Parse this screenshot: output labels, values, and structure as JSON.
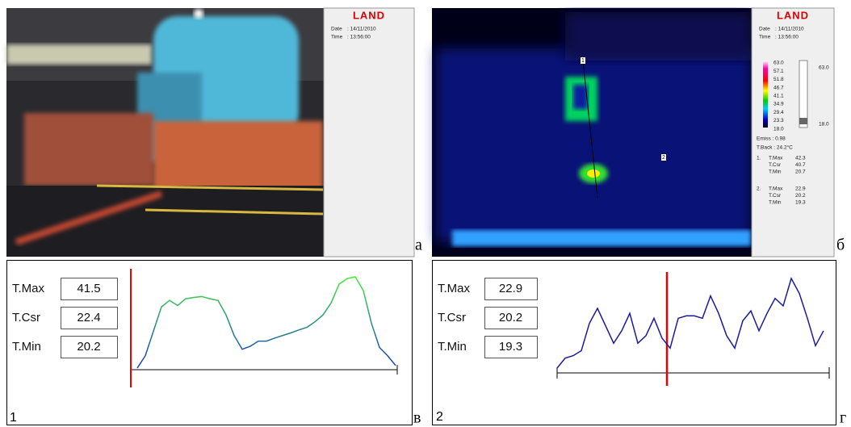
{
  "panels": [
    {
      "letter": "а",
      "logo": "LAND",
      "date_label": "Date",
      "date": ": 14/11/2010",
      "time_label": "Time",
      "time": ": 13:56:00"
    },
    {
      "letter": "б",
      "logo": "LAND",
      "date_label": "Date",
      "date": ": 14/11/2010",
      "time_label": "Time",
      "time": ": 13:56:00",
      "scale_labels": [
        "63.0",
        "57.1",
        "51.8",
        "46.7",
        "41.1",
        "34.9",
        "29.4",
        "23.3",
        "18.0"
      ],
      "range_max": "63.0",
      "range_min": "18.0",
      "emiss": "Emiss    : 0.98",
      "t_back": "T.Back   : 24.2°C",
      "markers": [
        "1",
        "2"
      ],
      "readouts": [
        {
          "index": "1.",
          "rows": [
            {
              "name": "T.Max",
              "value": "42.3"
            },
            {
              "name": "T.Csr",
              "value": "40.7"
            },
            {
              "name": "T.Min",
              "value": "20.7"
            }
          ]
        },
        {
          "index": "2.",
          "rows": [
            {
              "name": "T.Max",
              "value": "22.9"
            },
            {
              "name": "T.Csr",
              "value": "20.2"
            },
            {
              "name": "T.Min",
              "value": "19.3"
            }
          ]
        }
      ]
    }
  ],
  "profiles": [
    {
      "label": "1",
      "letter": "в",
      "colors": [
        "#44ee33",
        "#1133cc"
      ],
      "readout": [
        {
          "name": "T.Max",
          "value": "41.5"
        },
        {
          "name": "T.Csr",
          "value": "22.4"
        },
        {
          "name": "T.Min",
          "value": "20.2"
        }
      ],
      "values": [
        20.2,
        23.1,
        28.8,
        34.5,
        36.0,
        34.8,
        36.4,
        36.7,
        36.9,
        36.4,
        36.0,
        32.6,
        27.8,
        24.6,
        25.3,
        26.5,
        26.5,
        27.2,
        27.8,
        28.4,
        29.1,
        29.7,
        31.0,
        32.6,
        35.4,
        39.8,
        41.1,
        41.5,
        38.3,
        30.7,
        25.0,
        23.1,
        20.8
      ]
    },
    {
      "label": "2",
      "letter": "г",
      "colors": [
        "#1a1aa0",
        "#1a1aa0"
      ],
      "readout": [
        {
          "name": "T.Max",
          "value": "22.9"
        },
        {
          "name": "T.Csr",
          "value": "20.2"
        },
        {
          "name": "T.Min",
          "value": "19.3"
        }
      ],
      "values": [
        19.3,
        19.7,
        19.8,
        20.0,
        21.1,
        21.7,
        21.0,
        20.3,
        20.8,
        21.5,
        20.3,
        20.6,
        21.3,
        20.5,
        20.1,
        21.3,
        21.4,
        21.4,
        21.3,
        22.2,
        21.5,
        20.6,
        20.1,
        21.2,
        21.6,
        20.8,
        21.5,
        22.1,
        21.8,
        22.9,
        22.3,
        21.3,
        20.2,
        20.8
      ]
    }
  ]
}
